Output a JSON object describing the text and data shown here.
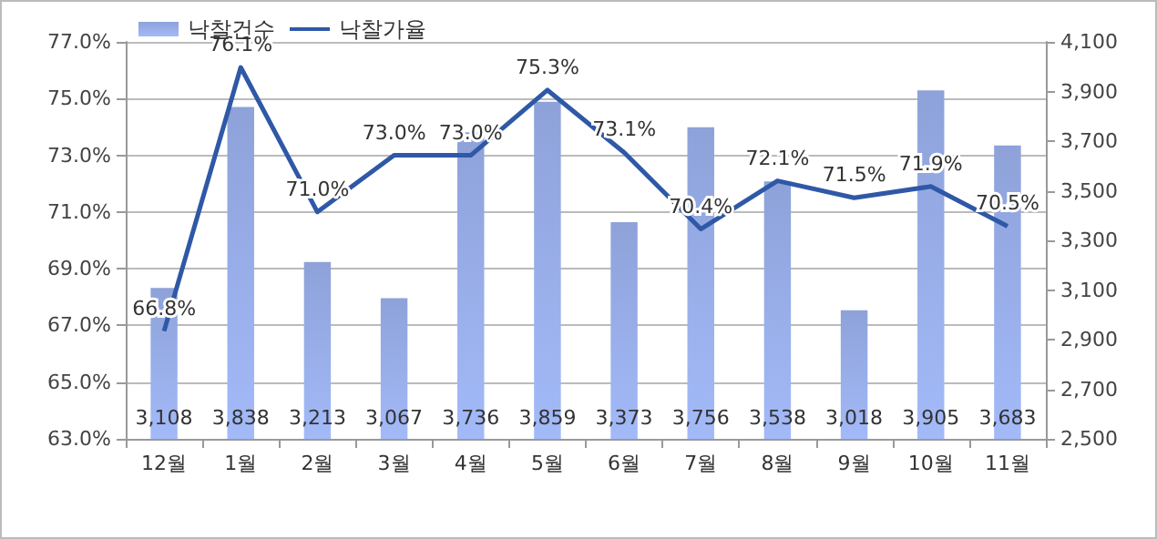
{
  "chart_data": {
    "type": "bar",
    "categories": [
      "12월",
      "1월",
      "2월",
      "3월",
      "4월",
      "5월",
      "6월",
      "7월",
      "8월",
      "9월",
      "10월",
      "11월"
    ],
    "series": [
      {
        "name": "낙찰건수",
        "axis": "y2",
        "color": "#8ea2d9",
        "values": [
          3108,
          3838,
          3213,
          3067,
          3736,
          3859,
          3373,
          3756,
          3538,
          3018,
          3905,
          3683
        ],
        "value_labels": [
          "3,108",
          "3,838",
          "3,213",
          "3,067",
          "3,736",
          "3,859",
          "3,373",
          "3,756",
          "3,538",
          "3,018",
          "3,905",
          "3,683"
        ]
      },
      {
        "name": "낙찰가율",
        "type": "line",
        "axis": "y",
        "color": "#2f58a6",
        "marker": "none",
        "values": [
          66.8,
          76.1,
          71.0,
          73.0,
          73.0,
          75.3,
          73.1,
          70.4,
          72.1,
          71.5,
          71.9,
          70.5
        ],
        "value_labels": [
          "66.8%",
          "76.1%",
          "71.0%",
          "73.0%",
          "73.0%",
          "75.3%",
          "73.1%",
          "70.4%",
          "72.1%",
          "71.5%",
          "71.9%",
          "70.5%"
        ]
      }
    ],
    "ylim": [
      63,
      77
    ],
    "yticks": [
      {
        "value": 63,
        "label": "63.0%"
      },
      {
        "value": 65,
        "label": "65.0%"
      },
      {
        "value": 67,
        "label": "67.0%"
      },
      {
        "value": 69,
        "label": "69.0%"
      },
      {
        "value": 71,
        "label": "71.0%"
      },
      {
        "value": 73,
        "label": "73.0%"
      },
      {
        "value": 75,
        "label": "75.0%"
      },
      {
        "value": 77,
        "label": "77.0%"
      }
    ],
    "y2lim": [
      2500,
      4100
    ],
    "y2ticks": [
      {
        "value": 2500,
        "label": "2,500"
      },
      {
        "value": 2700,
        "label": "2,700"
      },
      {
        "value": 2900,
        "label": "2,900"
      },
      {
        "value": 3100,
        "label": "3,100"
      },
      {
        "value": 3300,
        "label": "3,300"
      },
      {
        "value": 3500,
        "label": "3,500"
      },
      {
        "value": 3700,
        "label": "3,700"
      },
      {
        "value": 3900,
        "label": "3,900"
      },
      {
        "value": 4100,
        "label": "4,100"
      }
    ],
    "grid": "y",
    "legend": "top left"
  }
}
